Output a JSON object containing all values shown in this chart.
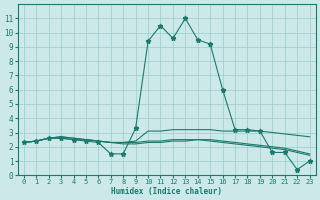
{
  "x": [
    0,
    1,
    2,
    3,
    4,
    5,
    6,
    7,
    8,
    9,
    10,
    11,
    12,
    13,
    14,
    15,
    16,
    17,
    18,
    19,
    20,
    21,
    22,
    23
  ],
  "line1": [
    2.3,
    2.4,
    2.6,
    2.6,
    2.5,
    2.4,
    2.3,
    1.5,
    1.5,
    3.3,
    9.4,
    10.5,
    9.6,
    11.0,
    9.5,
    9.2,
    6.0,
    3.2,
    3.2,
    3.1,
    1.6,
    1.6,
    0.4,
    1.0
  ],
  "line2": [
    2.3,
    2.4,
    2.6,
    2.6,
    2.5,
    2.5,
    2.4,
    2.3,
    2.3,
    2.3,
    2.4,
    2.4,
    2.5,
    2.5,
    2.5,
    2.5,
    2.4,
    2.3,
    2.2,
    2.1,
    2.0,
    1.9,
    1.7,
    1.5
  ],
  "line3": [
    2.3,
    2.4,
    2.6,
    2.7,
    2.6,
    2.5,
    2.4,
    2.3,
    2.2,
    2.2,
    2.3,
    2.3,
    2.4,
    2.4,
    2.5,
    2.4,
    2.3,
    2.2,
    2.1,
    2.0,
    1.9,
    1.8,
    1.6,
    1.4
  ],
  "line4": [
    2.3,
    2.4,
    2.6,
    2.7,
    2.6,
    2.5,
    2.4,
    2.3,
    2.3,
    2.4,
    3.1,
    3.1,
    3.2,
    3.2,
    3.2,
    3.2,
    3.1,
    3.1,
    3.1,
    3.1,
    3.0,
    2.9,
    2.8,
    2.7
  ],
  "line_color": "#1a7a6e",
  "bg_color": "#cce8e8",
  "grid_color": "#99cccc",
  "xlabel": "Humidex (Indice chaleur)",
  "ylim": [
    0,
    12
  ],
  "xlim": [
    -0.5,
    23.5
  ],
  "yticks": [
    0,
    1,
    2,
    3,
    4,
    5,
    6,
    7,
    8,
    9,
    10,
    11
  ],
  "xticks": [
    0,
    1,
    2,
    3,
    4,
    5,
    6,
    7,
    8,
    9,
    10,
    11,
    12,
    13,
    14,
    15,
    16,
    17,
    18,
    19,
    20,
    21,
    22,
    23
  ]
}
